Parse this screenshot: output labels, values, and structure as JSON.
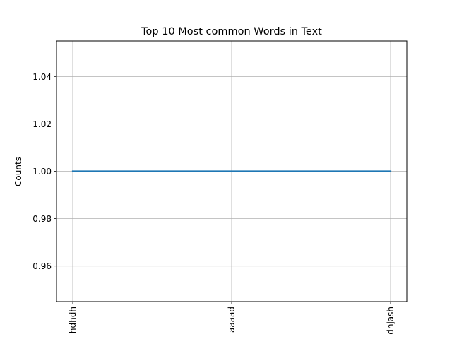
{
  "chart_data": {
    "type": "line",
    "title": "Top 10 Most common Words in Text",
    "xlabel": "",
    "ylabel": "Counts",
    "categories": [
      "hdhdh",
      "aaaad",
      "dhjash"
    ],
    "series": [
      {
        "values": [
          1,
          1,
          1
        ],
        "color": "#1f77b4"
      }
    ],
    "ylim": [
      0.945,
      1.055
    ],
    "yticks": [
      0.96,
      0.98,
      1.0,
      1.02,
      1.04
    ],
    "ytick_labels": [
      "0.96",
      "0.98",
      "1.00",
      "1.02",
      "1.04"
    ],
    "grid": true,
    "xtick_rotation": "vertical"
  }
}
